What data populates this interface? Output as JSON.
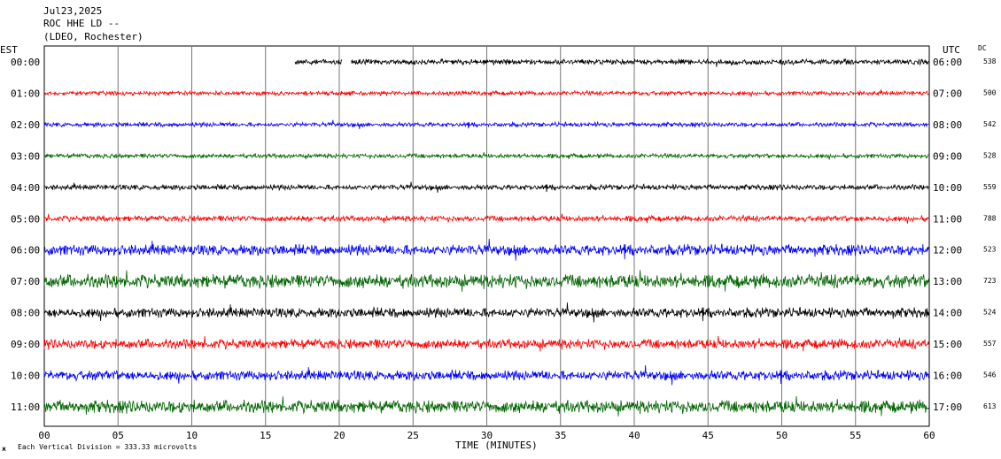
{
  "header": {
    "date": "Jul23,2025",
    "station": "ROC HHE LD --",
    "network": "(LDEO, Rochester)"
  },
  "left_axis_title": "EST",
  "right_axis_title": "UTC",
  "dc_title": "DC",
  "x_axis_title": "TIME (MINUTES)",
  "footer": {
    "mark": "ж",
    "text": "Each Vertical Division =  333.33 microvolts"
  },
  "colors": {
    "black": "#000000",
    "red": "#ff0000",
    "blue": "#0000ff",
    "green": "#006400"
  },
  "chart_data": {
    "type": "line",
    "title": "ROC HHE LD --",
    "xlabel": "TIME (MINUTES)",
    "ylabel": "",
    "xlim": [
      0,
      60
    ],
    "x_ticks": [
      "00",
      "05",
      "10",
      "15",
      "20",
      "25",
      "30",
      "35",
      "40",
      "45",
      "50",
      "55",
      "60"
    ],
    "grid": true,
    "rows": [
      {
        "est": "00:00",
        "utc": "06:00",
        "dc": "538",
        "color": "black",
        "amp": 0.55,
        "start_min": 17,
        "gaps": [
          [
            20.2,
            20.8
          ]
        ]
      },
      {
        "est": "01:00",
        "utc": "07:00",
        "dc": "500",
        "color": "red",
        "amp": 0.45,
        "start_min": 0,
        "gaps": []
      },
      {
        "est": "02:00",
        "utc": "08:00",
        "dc": "542",
        "color": "blue",
        "amp": 0.45,
        "start_min": 0,
        "gaps": []
      },
      {
        "est": "03:00",
        "utc": "09:00",
        "dc": "528",
        "color": "green",
        "amp": 0.45,
        "start_min": 0,
        "gaps": []
      },
      {
        "est": "04:00",
        "utc": "10:00",
        "dc": "559",
        "color": "black",
        "amp": 0.55,
        "start_min": 0,
        "gaps": []
      },
      {
        "est": "05:00",
        "utc": "11:00",
        "dc": "788",
        "color": "red",
        "amp": 0.6,
        "start_min": 0,
        "gaps": []
      },
      {
        "est": "06:00",
        "utc": "12:00",
        "dc": "523",
        "color": "blue",
        "amp": 1.1,
        "start_min": 0,
        "gaps": []
      },
      {
        "est": "07:00",
        "utc": "13:00",
        "dc": "723",
        "color": "green",
        "amp": 1.4,
        "start_min": 0,
        "gaps": []
      },
      {
        "est": "08:00",
        "utc": "14:00",
        "dc": "524",
        "color": "black",
        "amp": 1.0,
        "start_min": 0,
        "gaps": []
      },
      {
        "est": "09:00",
        "utc": "15:00",
        "dc": "557",
        "color": "red",
        "amp": 1.0,
        "start_min": 0,
        "gaps": []
      },
      {
        "est": "10:00",
        "utc": "16:00",
        "dc": "546",
        "color": "blue",
        "amp": 1.0,
        "start_min": 0,
        "gaps": []
      },
      {
        "est": "11:00",
        "utc": "17:00",
        "dc": "613",
        "color": "green",
        "amp": 1.3,
        "start_min": 0,
        "gaps": []
      }
    ]
  }
}
